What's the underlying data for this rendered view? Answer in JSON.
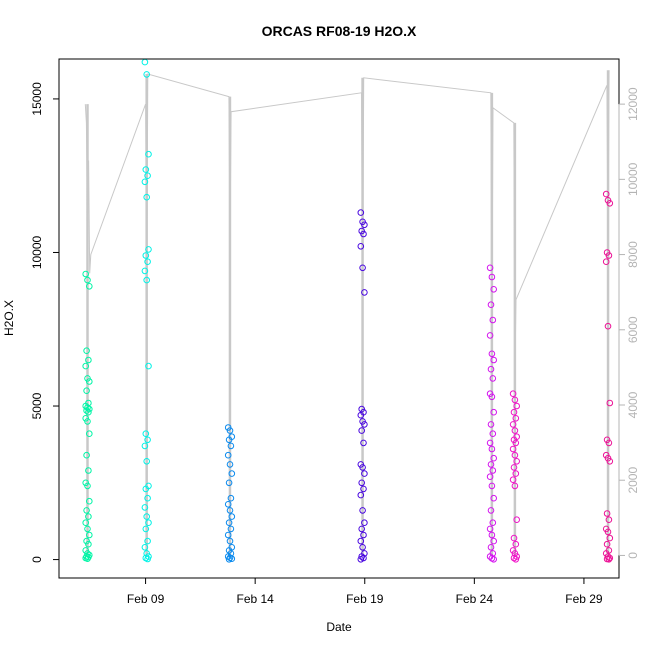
{
  "chart_data": {
    "type": "scatter",
    "title": "ORCAS RF08-19 H2O.X",
    "xlabel": "Date",
    "ylabel": "H2O.X",
    "x_ticks": [
      "Feb 09",
      "Feb 14",
      "Feb 19",
      "Feb 24",
      "Feb 29"
    ],
    "x_tick_days": [
      9,
      14,
      19,
      24,
      29
    ],
    "xlim_days": [
      5.05,
      30.6
    ],
    "ylim": [
      -600,
      16300
    ],
    "y_ticks": [
      0,
      5000,
      10000,
      15000
    ],
    "y2lim": [
      -600,
      13200
    ],
    "y2_ticks": [
      0,
      2000,
      4000,
      6000,
      8000,
      10000,
      12000
    ],
    "grid": false,
    "legend": "none",
    "colors": {
      "rf08": "#00f5a6",
      "rf09": "#00f2e6",
      "rf10": "#0a8aee",
      "rf11": "#4a08e0",
      "rf12": "#d413ef",
      "rf13": "#f012c8",
      "rf14": "#ec1296",
      "line": "#c8c8c8"
    },
    "series": [
      {
        "flight": "rf08",
        "day": 6.35,
        "values": [
          9300,
          9100,
          8900,
          6800,
          6500,
          6300,
          5900,
          5800,
          5500,
          5100,
          5000,
          4950,
          4900,
          4850,
          4800,
          4600,
          4500,
          4100,
          3400,
          2900,
          2500,
          2400,
          1900,
          1600,
          1400,
          1200,
          1000,
          800,
          600,
          500,
          300,
          200,
          150,
          100,
          80,
          50,
          30
        ]
      },
      {
        "flight": "rf09",
        "day": 9.05,
        "values": [
          16200,
          15800,
          13200,
          12700,
          12500,
          12300,
          11800,
          10100,
          9900,
          9700,
          9400,
          9100,
          6300,
          4100,
          3900,
          3700,
          3200,
          2400,
          2300,
          2000,
          1700,
          1400,
          1200,
          1000,
          600,
          400,
          200,
          100,
          50,
          20
        ]
      },
      {
        "flight": "rf10",
        "day": 12.85,
        "values": [
          4300,
          4200,
          4000,
          3900,
          3700,
          3400,
          3100,
          2800,
          2500,
          2000,
          1800,
          1600,
          1400,
          1200,
          1000,
          800,
          600,
          400,
          300,
          200,
          100,
          60,
          30,
          10
        ]
      },
      {
        "flight": "rf11",
        "day": 18.9,
        "values": [
          11300,
          11000,
          10900,
          10700,
          10600,
          10200,
          9500,
          8700,
          4900,
          4800,
          4700,
          4500,
          4400,
          4200,
          3800,
          3100,
          3000,
          2800,
          2500,
          2300,
          2100,
          1600,
          1200,
          1000,
          800,
          600,
          400,
          200,
          100,
          50,
          10
        ]
      },
      {
        "flight": "rf12",
        "day": 24.8,
        "values": [
          9500,
          9200,
          8800,
          8300,
          7800,
          7300,
          6700,
          6500,
          6200,
          5900,
          5400,
          5300,
          4800,
          4400,
          4100,
          3800,
          3600,
          3300,
          3100,
          2900,
          2700,
          2400,
          2000,
          1600,
          1200,
          1000,
          800,
          600,
          400,
          200,
          100,
          40,
          10
        ]
      },
      {
        "flight": "rf13",
        "day": 25.85,
        "values": [
          5400,
          5200,
          5000,
          4800,
          4600,
          4400,
          4200,
          4000,
          3900,
          3800,
          3600,
          3400,
          3200,
          3000,
          2800,
          2600,
          2400,
          1300,
          700,
          500,
          300,
          200,
          100,
          50,
          10
        ]
      },
      {
        "flight": "rf14",
        "day": 30.1,
        "values": [
          11900,
          11700,
          11600,
          10000,
          9900,
          9700,
          7600,
          5100,
          3900,
          3800,
          3400,
          3300,
          3200,
          1500,
          1300,
          1000,
          900,
          700,
          500,
          300,
          200,
          100,
          50,
          20,
          10
        ]
      }
    ],
    "secondary_line": {
      "x_days": [
        6.25,
        6.3,
        6.35,
        6.4,
        6.45,
        6.5,
        9.0,
        9.05,
        9.1,
        12.8,
        12.85,
        12.9,
        18.85,
        18.9,
        18.95,
        24.75,
        24.8,
        24.85,
        25.8,
        25.85,
        25.9,
        30.05,
        30.1,
        30.15
      ],
      "values": [
        12000,
        11500,
        8800,
        10500,
        7500,
        8000,
        12000,
        7000,
        12800,
        12200,
        8400,
        11800,
        12300,
        6800,
        12700,
        12300,
        6200,
        11900,
        11500,
        4900,
        6800,
        12500,
        8200,
        12900
      ]
    },
    "secondary_verticals": {
      "rf08": {
        "day": 6.35,
        "min": 0,
        "max": 12000
      },
      "rf09": {
        "day": 9.05,
        "min": 0,
        "max": 12800
      },
      "rf10": {
        "day": 12.85,
        "min": 0,
        "max": 12200
      },
      "rf11": {
        "day": 18.9,
        "min": 0,
        "max": 12700
      },
      "rf12": {
        "day": 24.8,
        "min": 0,
        "max": 12300
      },
      "rf13": {
        "day": 25.85,
        "min": 0,
        "max": 11500
      },
      "rf14": {
        "day": 30.1,
        "min": 0,
        "max": 12900
      }
    }
  }
}
